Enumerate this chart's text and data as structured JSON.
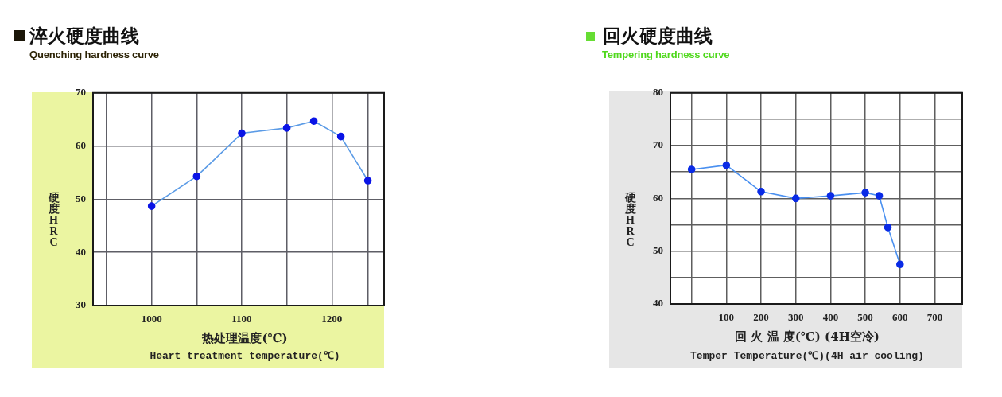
{
  "chart_data": [
    {
      "type": "line",
      "title": "淬火硬度曲线",
      "subtitle": "Quenching hardness curve",
      "xlabel": "热处理温度(℃)\nHeart treatment temperature(℃)",
      "ylabel": "硬度HRC",
      "x": [
        1000,
        1050,
        1100,
        1150,
        1180,
        1210,
        1240
      ],
      "series": [
        {
          "color": "#5b9be6",
          "colors": [
            "#0a14e6",
            "#0a14e6",
            "#0a14e6",
            "#0a14e6",
            "#0a14e6",
            "#0a14e6",
            "#0a14e6"
          ],
          "values": [
            48.7,
            54.3,
            62.4,
            63.4,
            64.7,
            61.8,
            53.5
          ]
        }
      ],
      "xlim": [
        935,
        1258
      ],
      "ylim": [
        30,
        70
      ],
      "xticks": [
        {
          "value": 950,
          "label": null
        },
        1000,
        {
          "value": 1050,
          "label": null
        },
        1100,
        {
          "value": 1150,
          "label": null
        },
        1200,
        {
          "value": 1240,
          "label": null
        }
      ],
      "yticks": [
        30,
        40,
        50,
        60,
        70
      ],
      "grid": true,
      "marker": "circle",
      "line_style": "solid"
    },
    {
      "type": "line",
      "title": "回火硬度曲线",
      "subtitle": "Tempering hardness curve",
      "xlabel": "回 火 温 度(℃) (4H空冷)\nTemper Temperature(℃)(4H air cooling)",
      "ylabel": "硬度HRC",
      "x": [
        0,
        100,
        200,
        300,
        400,
        500,
        540,
        565,
        600
      ],
      "series": [
        {
          "color": "#4a90f0",
          "colors": [
            "#0a2be6",
            "#0a2be6",
            "#0a2be6",
            "#0a2be6",
            "#0a2be6",
            "#0a2be6",
            "#0a2be6",
            "#0a2be6",
            "#0a2be6"
          ],
          "values": [
            65.5,
            66.3,
            61.3,
            60,
            60.5,
            61.1,
            60.5,
            54.5,
            47.5
          ]
        }
      ],
      "xlim": [
        -61,
        779
      ],
      "ylim": [
        40,
        80
      ],
      "xticks": [
        {
          "value": 0,
          "label": null
        },
        100,
        200,
        300,
        400,
        500,
        600,
        700
      ],
      "yticks": [
        40,
        {
          "value": 45,
          "label": null
        },
        50,
        {
          "value": 55,
          "label": null
        },
        60,
        {
          "value": 65,
          "label": null
        },
        70,
        {
          "value": 75,
          "label": null
        },
        80
      ],
      "grid": true,
      "marker": "circle",
      "line_style": "solid"
    }
  ]
}
